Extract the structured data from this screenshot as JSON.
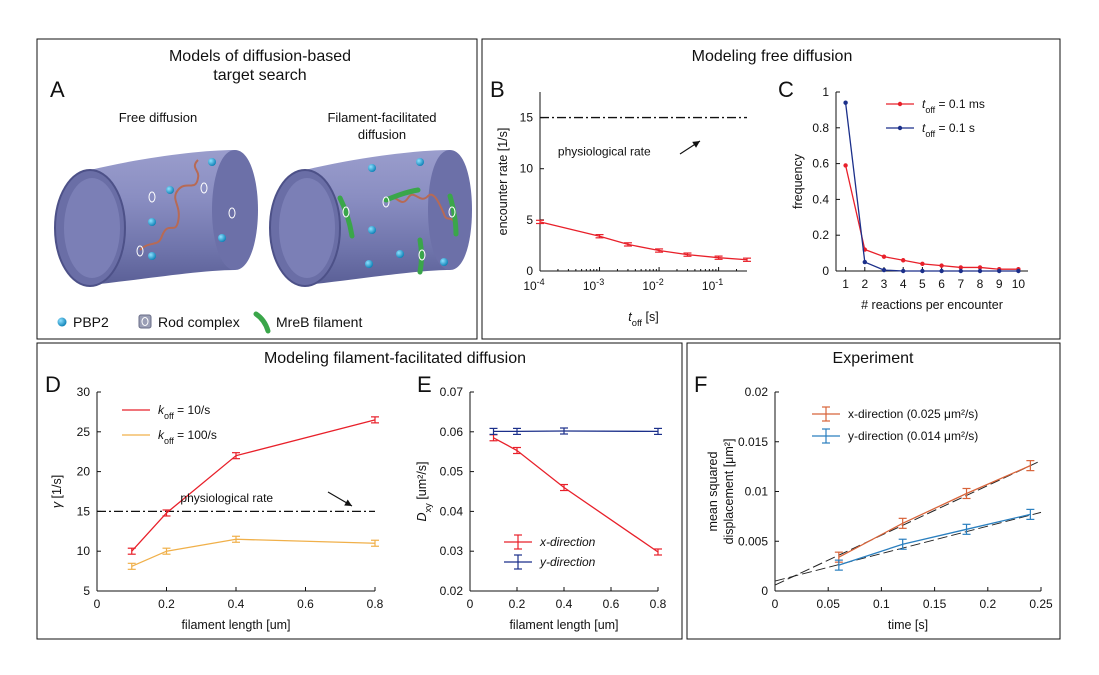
{
  "figure": {
    "panels": {
      "A": {
        "letter": "A",
        "title_lines": [
          "Models of diffusion-based",
          "target search"
        ]
      },
      "BC": {
        "title": "Modeling free diffusion"
      },
      "B": {
        "letter": "B"
      },
      "C": {
        "letter": "C"
      },
      "DE": {
        "title": "Modeling filament-facilitated diffusion"
      },
      "D": {
        "letter": "D"
      },
      "E": {
        "letter": "E"
      },
      "F": {
        "letter": "F",
        "title": "Experiment"
      }
    },
    "schematic": {
      "left_label": "Free diffusion",
      "right_label_lines": [
        "Filament-facilitated",
        "diffusion"
      ],
      "legend": [
        "PBP2",
        "Rod complex",
        "MreB filament"
      ],
      "colors": {
        "cylinder": "#7c80b3",
        "pbp2": "#1aa3d9",
        "mreb": "#3aa64a",
        "path": "#b76a55"
      }
    }
  },
  "chart_data": [
    {
      "id": "B",
      "type": "line",
      "xscale": "log",
      "xlim": [
        0.0001,
        0.3
      ],
      "ylim": [
        0,
        17.5
      ],
      "yticks": [
        0,
        5,
        10,
        15
      ],
      "xticks": [
        {
          "v": 0.0001,
          "base": "10",
          "exp": "-4"
        },
        {
          "v": 0.001,
          "base": "10",
          "exp": "-3"
        },
        {
          "v": 0.01,
          "base": "10",
          "exp": "-2"
        },
        {
          "v": 0.1,
          "base": "10",
          "exp": "-1"
        }
      ],
      "xlabel": {
        "main": "t",
        "sub": "off",
        "rest": " [s]"
      },
      "ylabel": "encounter rate [1/s]",
      "series": [
        {
          "color": "#e8202a",
          "errorbars": true,
          "x": [
            0.0001,
            0.001,
            0.003,
            0.01,
            0.03,
            0.1,
            0.3
          ],
          "y": [
            4.8,
            3.4,
            2.6,
            2.0,
            1.6,
            1.3,
            1.1
          ]
        }
      ],
      "hline": {
        "y": 15,
        "style": "dashdot",
        "color": "#111111"
      },
      "annotation": {
        "text": "physiological rate",
        "x": 0.0002,
        "y": 11.3,
        "arrow_to": [
          0.032,
          15
        ]
      }
    },
    {
      "id": "C",
      "type": "line",
      "xlim": [
        0.5,
        10.5
      ],
      "ylim": [
        0,
        1
      ],
      "xticks": [
        1,
        2,
        3,
        4,
        5,
        6,
        7,
        8,
        9,
        10
      ],
      "yticks": [
        0,
        0.2,
        0.4,
        0.6,
        0.8,
        1
      ],
      "xlabel": "# reactions per encounter",
      "ylabel": "frequency",
      "legend_position": "top-right",
      "series": [
        {
          "name": {
            "main": "t",
            "sub": "off",
            "rest": " = 0.1 ms"
          },
          "color": "#e8202a",
          "x": [
            1,
            2,
            3,
            4,
            5,
            6,
            7,
            8,
            9,
            10
          ],
          "y": [
            0.59,
            0.12,
            0.08,
            0.06,
            0.04,
            0.03,
            0.02,
            0.02,
            0.01,
            0.01
          ]
        },
        {
          "name": {
            "main": "t",
            "sub": "off",
            "rest": " = 0.1 s"
          },
          "color": "#1b2f8a",
          "x": [
            1,
            2,
            3,
            4,
            5,
            6,
            7,
            8,
            9,
            10
          ],
          "y": [
            0.94,
            0.05,
            0.005,
            0.0,
            0.0,
            0.0,
            0.0,
            0.0,
            0.0,
            0.0
          ]
        }
      ]
    },
    {
      "id": "D",
      "type": "line",
      "xlim": [
        0,
        0.8
      ],
      "ylim": [
        5,
        30
      ],
      "xticks": [
        0,
        0.2,
        0.4,
        0.6,
        0.8
      ],
      "yticks": [
        5,
        10,
        15,
        20,
        25,
        30
      ],
      "xlabel": "filament length [um]",
      "ylabel": {
        "main": "γ",
        "rest": " [1/s]"
      },
      "legend_position": "top-left",
      "series": [
        {
          "name": {
            "main": "k",
            "sub": "off",
            "rest": " = 10/s"
          },
          "color": "#e8202a",
          "errorbars": true,
          "x": [
            0.1,
            0.2,
            0.4,
            0.8
          ],
          "y": [
            10.0,
            14.8,
            22.0,
            26.5
          ]
        },
        {
          "name": {
            "main": "k",
            "sub": "off",
            "rest": " = 100/s"
          },
          "color": "#f0b04a",
          "errorbars": true,
          "x": [
            0.1,
            0.2,
            0.4,
            0.8
          ],
          "y": [
            8.1,
            10.0,
            11.5,
            11.0
          ]
        }
      ],
      "hline": {
        "y": 15,
        "style": "dashdot",
        "color": "#111111"
      },
      "annotation": {
        "text": "physiological rate",
        "x": 0.24,
        "y": 16.2,
        "arrow_to": [
          0.76,
          15.2
        ]
      }
    },
    {
      "id": "E",
      "type": "line",
      "xlim": [
        0,
        0.8
      ],
      "ylim": [
        0.02,
        0.07
      ],
      "xticks": [
        0,
        0.2,
        0.4,
        0.6,
        0.8
      ],
      "yticks": [
        0.02,
        0.03,
        0.04,
        0.05,
        0.06,
        0.07
      ],
      "xlabel": "filament length [um]",
      "ylabel": {
        "main": "D",
        "sub": "xy",
        "rest": " [um²/s]"
      },
      "legend_position": "bottom-right",
      "series": [
        {
          "name": "x-direction",
          "color": "#e8202a",
          "errorbars": true,
          "x": [
            0.1,
            0.2,
            0.4,
            0.8
          ],
          "y": [
            0.0585,
            0.0553,
            0.046,
            0.0298
          ]
        },
        {
          "name": "y-direction",
          "color": "#1b2f8a",
          "errorbars": true,
          "x": [
            0.1,
            0.2,
            0.4,
            0.8
          ],
          "y": [
            0.0601,
            0.0601,
            0.0602,
            0.0601
          ]
        }
      ]
    },
    {
      "id": "F",
      "type": "line",
      "xlim": [
        0,
        0.25
      ],
      "ylim": [
        0,
        0.02
      ],
      "xticks": [
        0,
        0.05,
        0.1,
        0.15,
        0.2,
        0.25
      ],
      "yticks": [
        0,
        0.005,
        0.01,
        0.015,
        0.02
      ],
      "xlabel": "time [s]",
      "ylabel_lines": [
        "mean squared",
        "displacement [μm²]"
      ],
      "legend_position": "top-left",
      "series": [
        {
          "name": "x-direction (0.025  μm²/s)",
          "color": "#d8643a",
          "errorbars": true,
          "x": [
            0.06,
            0.12,
            0.18,
            0.24
          ],
          "y": [
            0.0034,
            0.0068,
            0.0098,
            0.0126
          ]
        },
        {
          "name": "y-direction (0.014  μm²/s)",
          "color": "#2a7fbf",
          "errorbars": true,
          "x": [
            0.06,
            0.12,
            0.18,
            0.24
          ],
          "y": [
            0.0026,
            0.0047,
            0.0062,
            0.0077
          ]
        }
      ],
      "fits": [
        {
          "x": [
            0,
            0.25
          ],
          "y": [
            0.0006,
            0.0131
          ],
          "color": "#222222"
        },
        {
          "x": [
            0,
            0.25
          ],
          "y": [
            0.001,
            0.0079
          ],
          "color": "#222222"
        }
      ]
    }
  ]
}
